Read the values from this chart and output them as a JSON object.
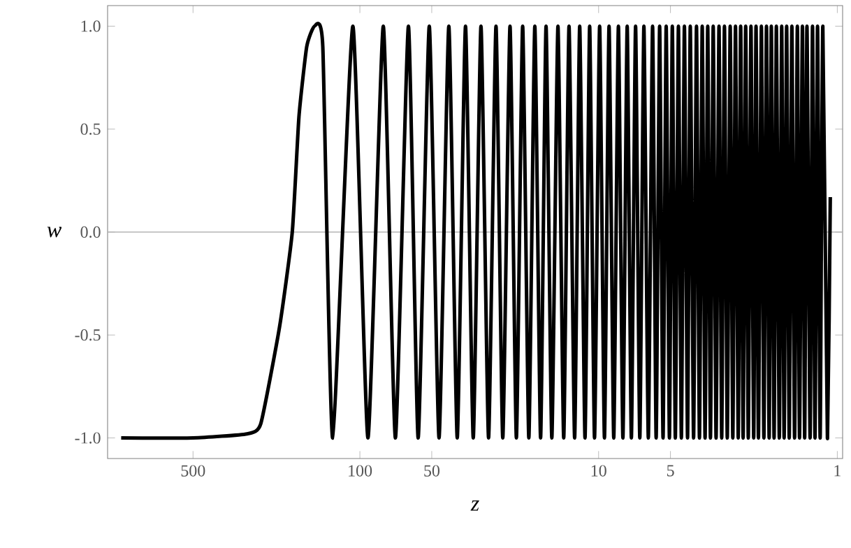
{
  "chart_data": {
    "type": "line",
    "xlabel": "z",
    "ylabel": "w",
    "log": "x",
    "xlim": [
      1140,
      0.95
    ],
    "xticks": [
      500,
      100,
      50,
      10,
      5,
      1
    ],
    "ylim": [
      -1.1,
      1.1
    ],
    "yticks": [
      {
        "value": -1,
        "label": "-1.0"
      },
      {
        "value": -0.5,
        "label": "-0.5"
      },
      {
        "value": 0,
        "label": "0.0"
      },
      {
        "value": 0.5,
        "label": "0.5"
      },
      {
        "value": 1,
        "label": "1.0"
      }
    ],
    "ref_lines": [
      {
        "axis": "y",
        "value": 0,
        "color": "#b4b4b4"
      }
    ],
    "line_style": "solid",
    "marker": "none",
    "series": [
      {
        "color": "#000000",
        "x": [
          1000,
          500,
          297,
          260,
          217,
          192,
          180,
          167,
          155,
          143,
          130,
          107,
          92.5,
          79.8,
          71.0,
          62.6,
          57.0,
          51.2,
          46.6,
          42.4,
          39.1,
          36.1,
          33.5,
          31.1,
          28.9,
          26.9,
          25.2,
          23.5,
          22.1,
          20.8,
          19.6,
          18.5,
          17.5,
          16.6,
          15.7,
          14.8,
          14.0,
          13.3,
          12.6,
          12.0,
          11.4,
          10.9,
          10.4,
          9.9,
          9.45,
          9.04,
          8.64,
          8.26,
          7.91,
          7.59,
          7.29,
          7.0,
          6.72,
          6.46,
          6.19,
          5.94,
          5.74,
          5.55,
          5.37,
          5.21,
          5.05,
          4.91,
          4.77,
          4.63,
          4.5,
          4.37,
          4.24,
          4.13,
          4.0,
          3.89,
          3.78,
          3.68,
          3.58,
          3.49,
          3.4,
          3.31,
          3.22,
          3.13,
          3.05,
          2.97,
          2.89,
          2.81,
          2.74,
          2.67,
          2.6,
          2.54,
          2.48,
          2.42,
          2.36,
          2.3,
          2.24,
          2.19,
          2.14,
          2.08,
          2.03,
          1.98,
          1.93,
          1.89,
          1.84,
          1.8,
          1.75,
          1.71,
          1.67,
          1.63,
          1.59,
          1.55,
          1.51,
          1.47,
          1.44,
          1.4,
          1.37,
          1.34,
          1.3,
          1.27,
          1.24,
          1.21,
          1.18,
          1.15,
          1.1,
          1.07
        ],
        "values": [
          -1,
          -1,
          -0.98,
          -0.93,
          -0.46,
          0,
          0.56,
          0.9,
          1,
          0.9,
          -1,
          1,
          -1,
          1,
          -1,
          1,
          -1,
          1,
          -1,
          1,
          -1,
          1,
          -1,
          1,
          -1,
          1,
          -1,
          1,
          -1,
          1,
          -1,
          1,
          -1,
          1,
          -1,
          1,
          -1,
          1,
          -1,
          1,
          -1,
          1,
          -1,
          1,
          -1,
          1,
          -1,
          1,
          -1,
          1,
          -1,
          1,
          -1,
          1,
          -1,
          1,
          -1,
          1,
          -1,
          1,
          -1,
          1,
          -1,
          1,
          -1,
          1,
          -1,
          1,
          -1,
          1,
          -1,
          1,
          -1,
          1,
          -1,
          1,
          -1,
          1,
          -1,
          1,
          -1,
          1,
          -1,
          1,
          -1,
          1,
          -1,
          1,
          -1,
          1,
          -1,
          1,
          -1,
          1,
          -1,
          1,
          -1,
          1,
          -1,
          1,
          -1,
          1,
          -1,
          1,
          -1,
          1,
          -1,
          1,
          -1,
          1,
          -1,
          1,
          -1,
          1,
          -1,
          1,
          -1,
          1,
          -1,
          0.17
        ]
      }
    ]
  }
}
